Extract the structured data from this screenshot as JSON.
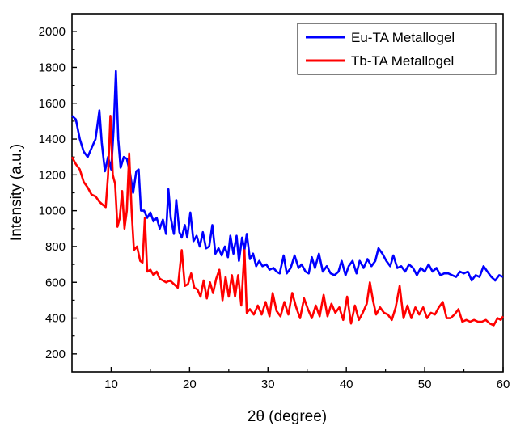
{
  "chart_data": {
    "type": "line",
    "xlabel": "2θ (degree)",
    "ylabel": "Intensity (a.u.)",
    "xlim": [
      5,
      60
    ],
    "ylim": [
      100,
      2100
    ],
    "x_ticks": [
      10,
      20,
      30,
      40,
      50,
      60
    ],
    "y_ticks": [
      200,
      400,
      600,
      800,
      1000,
      1200,
      1400,
      1600,
      1800,
      2000
    ],
    "grid": false,
    "legend_position": "top-right",
    "series": [
      {
        "name": "Eu-TA Metallogel",
        "color": "#0000ff",
        "points": [
          [
            5.0,
            1530
          ],
          [
            5.5,
            1510
          ],
          [
            6.0,
            1400
          ],
          [
            6.5,
            1330
          ],
          [
            7.0,
            1300
          ],
          [
            7.5,
            1350
          ],
          [
            8.0,
            1400
          ],
          [
            8.5,
            1560
          ],
          [
            8.8,
            1380
          ],
          [
            9.2,
            1220
          ],
          [
            9.6,
            1300
          ],
          [
            10.0,
            1230
          ],
          [
            10.3,
            1450
          ],
          [
            10.6,
            1780
          ],
          [
            10.9,
            1400
          ],
          [
            11.2,
            1240
          ],
          [
            11.6,
            1300
          ],
          [
            12.0,
            1290
          ],
          [
            12.4,
            1210
          ],
          [
            12.8,
            1100
          ],
          [
            13.2,
            1220
          ],
          [
            13.5,
            1230
          ],
          [
            13.8,
            1000
          ],
          [
            14.2,
            1000
          ],
          [
            14.6,
            960
          ],
          [
            15.0,
            990
          ],
          [
            15.4,
            940
          ],
          [
            15.8,
            960
          ],
          [
            16.2,
            900
          ],
          [
            16.6,
            950
          ],
          [
            17.0,
            870
          ],
          [
            17.3,
            1120
          ],
          [
            17.6,
            960
          ],
          [
            18.0,
            870
          ],
          [
            18.3,
            1060
          ],
          [
            18.7,
            880
          ],
          [
            19.0,
            850
          ],
          [
            19.4,
            920
          ],
          [
            19.7,
            850
          ],
          [
            20.1,
            990
          ],
          [
            20.5,
            830
          ],
          [
            20.9,
            860
          ],
          [
            21.3,
            800
          ],
          [
            21.7,
            880
          ],
          [
            22.1,
            790
          ],
          [
            22.5,
            800
          ],
          [
            22.9,
            920
          ],
          [
            23.3,
            760
          ],
          [
            23.7,
            790
          ],
          [
            24.1,
            750
          ],
          [
            24.5,
            800
          ],
          [
            24.9,
            740
          ],
          [
            25.2,
            860
          ],
          [
            25.6,
            760
          ],
          [
            26.0,
            860
          ],
          [
            26.3,
            720
          ],
          [
            26.7,
            850
          ],
          [
            27.0,
            780
          ],
          [
            27.3,
            870
          ],
          [
            27.7,
            730
          ],
          [
            28.1,
            760
          ],
          [
            28.5,
            690
          ],
          [
            28.9,
            720
          ],
          [
            29.3,
            690
          ],
          [
            29.8,
            700
          ],
          [
            30.2,
            670
          ],
          [
            30.7,
            680
          ],
          [
            31.1,
            660
          ],
          [
            31.5,
            650
          ],
          [
            32.0,
            750
          ],
          [
            32.4,
            650
          ],
          [
            32.9,
            680
          ],
          [
            33.4,
            750
          ],
          [
            33.9,
            680
          ],
          [
            34.3,
            700
          ],
          [
            34.8,
            660
          ],
          [
            35.2,
            650
          ],
          [
            35.6,
            740
          ],
          [
            36.0,
            680
          ],
          [
            36.5,
            760
          ],
          [
            37.0,
            660
          ],
          [
            37.5,
            690
          ],
          [
            38.0,
            650
          ],
          [
            38.5,
            640
          ],
          [
            39.0,
            660
          ],
          [
            39.4,
            720
          ],
          [
            39.9,
            640
          ],
          [
            40.3,
            690
          ],
          [
            40.8,
            720
          ],
          [
            41.3,
            650
          ],
          [
            41.7,
            720
          ],
          [
            42.2,
            680
          ],
          [
            42.7,
            730
          ],
          [
            43.2,
            690
          ],
          [
            43.7,
            720
          ],
          [
            44.1,
            790
          ],
          [
            44.6,
            760
          ],
          [
            45.1,
            720
          ],
          [
            45.6,
            690
          ],
          [
            46.0,
            750
          ],
          [
            46.5,
            680
          ],
          [
            47.0,
            690
          ],
          [
            47.5,
            660
          ],
          [
            48.0,
            700
          ],
          [
            48.5,
            680
          ],
          [
            49.0,
            640
          ],
          [
            49.5,
            680
          ],
          [
            50.0,
            660
          ],
          [
            50.5,
            700
          ],
          [
            51.0,
            660
          ],
          [
            51.5,
            680
          ],
          [
            52.0,
            640
          ],
          [
            52.5,
            650
          ],
          [
            53.0,
            650
          ],
          [
            53.5,
            640
          ],
          [
            54.0,
            630
          ],
          [
            54.5,
            660
          ],
          [
            55.0,
            650
          ],
          [
            55.5,
            660
          ],
          [
            56.0,
            610
          ],
          [
            56.5,
            640
          ],
          [
            57.0,
            630
          ],
          [
            57.5,
            690
          ],
          [
            58.0,
            660
          ],
          [
            58.5,
            630
          ],
          [
            59.0,
            610
          ],
          [
            59.5,
            640
          ],
          [
            60.0,
            630
          ]
        ]
      },
      {
        "name": "Tb-TA Metallogel",
        "color": "#ff0000",
        "points": [
          [
            5.0,
            1300
          ],
          [
            5.5,
            1260
          ],
          [
            6.0,
            1230
          ],
          [
            6.5,
            1160
          ],
          [
            7.0,
            1130
          ],
          [
            7.5,
            1090
          ],
          [
            8.0,
            1080
          ],
          [
            8.5,
            1050
          ],
          [
            9.0,
            1030
          ],
          [
            9.3,
            1020
          ],
          [
            9.6,
            1200
          ],
          [
            9.9,
            1530
          ],
          [
            10.2,
            1200
          ],
          [
            10.5,
            1150
          ],
          [
            10.8,
            910
          ],
          [
            11.1,
            960
          ],
          [
            11.4,
            1110
          ],
          [
            11.7,
            900
          ],
          [
            12.0,
            1000
          ],
          [
            12.3,
            1320
          ],
          [
            12.6,
            1000
          ],
          [
            12.9,
            780
          ],
          [
            13.3,
            800
          ],
          [
            13.7,
            720
          ],
          [
            14.0,
            710
          ],
          [
            14.3,
            960
          ],
          [
            14.6,
            660
          ],
          [
            15.0,
            670
          ],
          [
            15.4,
            640
          ],
          [
            15.8,
            660
          ],
          [
            16.2,
            620
          ],
          [
            16.6,
            610
          ],
          [
            17.0,
            600
          ],
          [
            17.5,
            610
          ],
          [
            18.0,
            590
          ],
          [
            18.5,
            570
          ],
          [
            19.0,
            780
          ],
          [
            19.4,
            580
          ],
          [
            19.8,
            590
          ],
          [
            20.2,
            650
          ],
          [
            20.6,
            570
          ],
          [
            21.0,
            560
          ],
          [
            21.4,
            520
          ],
          [
            21.8,
            610
          ],
          [
            22.2,
            510
          ],
          [
            22.6,
            600
          ],
          [
            23.0,
            540
          ],
          [
            23.4,
            620
          ],
          [
            23.8,
            670
          ],
          [
            24.2,
            500
          ],
          [
            24.6,
            630
          ],
          [
            25.0,
            520
          ],
          [
            25.4,
            640
          ],
          [
            25.8,
            520
          ],
          [
            26.2,
            640
          ],
          [
            26.6,
            470
          ],
          [
            27.0,
            780
          ],
          [
            27.3,
            430
          ],
          [
            27.7,
            450
          ],
          [
            28.2,
            420
          ],
          [
            28.7,
            470
          ],
          [
            29.2,
            420
          ],
          [
            29.7,
            490
          ],
          [
            30.2,
            410
          ],
          [
            30.6,
            540
          ],
          [
            31.1,
            440
          ],
          [
            31.6,
            410
          ],
          [
            32.1,
            490
          ],
          [
            32.6,
            420
          ],
          [
            33.1,
            540
          ],
          [
            33.6,
            460
          ],
          [
            34.1,
            400
          ],
          [
            34.6,
            510
          ],
          [
            35.1,
            450
          ],
          [
            35.6,
            400
          ],
          [
            36.1,
            470
          ],
          [
            36.6,
            410
          ],
          [
            37.1,
            530
          ],
          [
            37.6,
            410
          ],
          [
            38.1,
            480
          ],
          [
            38.6,
            430
          ],
          [
            39.1,
            460
          ],
          [
            39.6,
            390
          ],
          [
            40.1,
            520
          ],
          [
            40.6,
            370
          ],
          [
            41.1,
            470
          ],
          [
            41.6,
            390
          ],
          [
            42.1,
            430
          ],
          [
            42.6,
            480
          ],
          [
            43.0,
            600
          ],
          [
            43.4,
            500
          ],
          [
            43.8,
            420
          ],
          [
            44.3,
            460
          ],
          [
            44.8,
            430
          ],
          [
            45.3,
            420
          ],
          [
            45.8,
            390
          ],
          [
            46.3,
            460
          ],
          [
            46.8,
            580
          ],
          [
            47.3,
            400
          ],
          [
            47.8,
            470
          ],
          [
            48.3,
            400
          ],
          [
            48.8,
            460
          ],
          [
            49.3,
            420
          ],
          [
            49.8,
            460
          ],
          [
            50.3,
            400
          ],
          [
            50.8,
            430
          ],
          [
            51.3,
            420
          ],
          [
            51.8,
            460
          ],
          [
            52.3,
            490
          ],
          [
            52.8,
            400
          ],
          [
            53.3,
            400
          ],
          [
            53.8,
            420
          ],
          [
            54.3,
            450
          ],
          [
            54.8,
            380
          ],
          [
            55.3,
            390
          ],
          [
            55.8,
            380
          ],
          [
            56.3,
            390
          ],
          [
            56.8,
            380
          ],
          [
            57.3,
            380
          ],
          [
            57.8,
            390
          ],
          [
            58.3,
            370
          ],
          [
            58.8,
            360
          ],
          [
            59.3,
            400
          ],
          [
            59.7,
            390
          ],
          [
            60.0,
            410
          ]
        ]
      }
    ]
  }
}
